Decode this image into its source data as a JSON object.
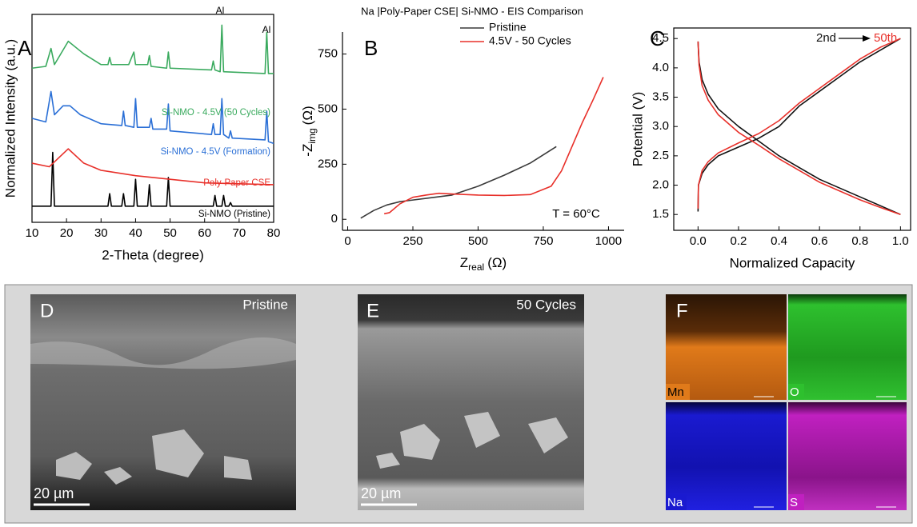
{
  "chart_data": [
    {
      "type": "line",
      "label": "A",
      "x_label": "2-Theta (degree)",
      "y_label": "Normalized Intensity (a.u.)",
      "xlim": [
        10,
        80
      ],
      "xticks": [
        10,
        20,
        30,
        40,
        50,
        60,
        70,
        80
      ],
      "ylim": [
        -8,
        108
      ],
      "annotations": [
        "Al",
        "Al"
      ],
      "series": [
        {
          "name": "Si-NMO (Pristine)",
          "color": "#000000",
          "x": [
            10,
            15.5,
            16,
            16.5,
            32,
            32.5,
            33,
            36,
            36.5,
            37,
            39.5,
            40,
            40.5,
            43.5,
            44,
            44.5,
            49,
            49.5,
            50,
            62.5,
            63,
            63.5,
            65,
            65.5,
            66,
            67,
            67.5,
            68,
            80
          ],
          "values": [
            1,
            1,
            31,
            1,
            1,
            8,
            1,
            1,
            8,
            1,
            1,
            16,
            1,
            1,
            13,
            1,
            1,
            17,
            1,
            1,
            7,
            1,
            1,
            7,
            1,
            1,
            3,
            1,
            1
          ]
        },
        {
          "name": "Poly-Paper CSE",
          "color": "#e8302a",
          "x": [
            10,
            15,
            20.5,
            25,
            30,
            40,
            50,
            60,
            80
          ],
          "values": [
            25,
            23,
            33,
            25,
            21,
            18,
            16,
            14,
            13
          ]
        },
        {
          "name": "Si-NMO - 4.5V (Formation)",
          "color": "#2a6fd6",
          "x": [
            10,
            14,
            15.5,
            16.5,
            19,
            21,
            24,
            30,
            36,
            36.5,
            37,
            39.5,
            40,
            40.5,
            44,
            44.5,
            45,
            49,
            49.5,
            50,
            62,
            62.5,
            63,
            64.5,
            65,
            65.5,
            67,
            67.5,
            68,
            77.5,
            78,
            78.5,
            80
          ],
          "values": [
            50,
            48,
            65,
            52,
            57,
            57,
            52,
            47,
            46,
            54,
            46,
            45,
            61,
            45,
            45,
            50,
            44,
            44,
            58,
            43,
            41,
            47,
            41,
            41,
            61,
            41,
            39,
            43,
            39,
            38,
            54,
            37,
            36
          ]
        },
        {
          "name": "Si-NMO - 4.5V (50 Cycles)",
          "color": "#3aaa5e",
          "x": [
            10,
            14,
            15.5,
            16.5,
            20.5,
            25,
            30,
            32,
            32.5,
            33,
            38,
            39.5,
            40,
            43.5,
            44,
            44.5,
            49,
            49.5,
            50,
            62,
            62.5,
            63,
            64.5,
            65,
            65.5,
            77.5,
            78,
            78.5,
            80
          ],
          "values": [
            78,
            79,
            89,
            80,
            93,
            86,
            80,
            80,
            84,
            80,
            80,
            87,
            80,
            80,
            85,
            79,
            78,
            87,
            78,
            77,
            82,
            77,
            76,
            102,
            76,
            75,
            98,
            75,
            75
          ]
        }
      ]
    },
    {
      "type": "line",
      "label": "B",
      "title": "Na |Poly-Paper CSE| Si-NMO - EIS Comparison",
      "x_label": {
        "main": "Z",
        "sub": "real",
        "unit": "(Ω)"
      },
      "y_label": {
        "main": "-Z",
        "sub": "img",
        "unit": "(Ω)"
      },
      "xlim": [
        -20,
        1060
      ],
      "xticks": [
        0,
        250,
        500,
        750,
        1000
      ],
      "ylim": [
        -50,
        850
      ],
      "yticks": [
        0,
        250,
        500,
        750
      ],
      "annotations": [
        "T = 60°C"
      ],
      "series": [
        {
          "name": "Pristine",
          "color": "#3a3a3a",
          "x": [
            50,
            100,
            150,
            200,
            300,
            400,
            500,
            600,
            700,
            800
          ],
          "values": [
            5,
            40,
            65,
            80,
            95,
            110,
            150,
            200,
            255,
            330
          ]
        },
        {
          "name": "4.5V - 50 Cycles",
          "color": "#e8302a",
          "x": [
            140,
            160,
            200,
            250,
            300,
            350,
            400,
            500,
            600,
            700,
            780,
            820,
            860,
            900,
            940,
            980
          ],
          "values": [
            25,
            30,
            70,
            100,
            110,
            118,
            115,
            110,
            108,
            112,
            150,
            220,
            330,
            440,
            540,
            645
          ]
        }
      ]
    },
    {
      "type": "line",
      "label": "C",
      "x_label": "Normalized Capacity",
      "y_label": "Potential (V)",
      "xlim": [
        -0.12,
        1.05
      ],
      "xticks": [
        {
          "value": 0,
          "label": "0.0"
        },
        0.2,
        0.4,
        0.6,
        0.8,
        {
          "value": 1,
          "label": "1.0"
        }
      ],
      "ylim": [
        1.23,
        4.68
      ],
      "yticks": [
        1.5,
        {
          "value": 2,
          "label": "2.0"
        },
        2.5,
        {
          "value": 3,
          "label": "3.0"
        },
        3.5,
        {
          "value": 4,
          "label": "4.0"
        },
        4.5
      ],
      "series": [
        {
          "name": "2nd",
          "color": "#111111",
          "x": [
            0,
            0.002,
            0.02,
            0.05,
            0.1,
            0.2,
            0.3,
            0.4,
            0.5,
            0.6,
            0.7,
            0.8,
            0.9,
            1.0,
            null,
            0,
            0.005,
            0.02,
            0.05,
            0.1,
            0.2,
            0.3,
            0.4,
            0.5,
            0.6,
            0.7,
            0.8,
            0.9,
            1.0
          ],
          "values": [
            1.55,
            2.0,
            2.2,
            2.35,
            2.5,
            2.65,
            2.8,
            3.0,
            3.35,
            3.6,
            3.85,
            4.1,
            4.3,
            4.5,
            null,
            4.45,
            4.1,
            3.8,
            3.55,
            3.3,
            3.0,
            2.75,
            2.5,
            2.3,
            2.1,
            1.95,
            1.8,
            1.65,
            1.5
          ]
        },
        {
          "name": "50th",
          "color": "#e8302a",
          "x": [
            0,
            0.002,
            0.02,
            0.05,
            0.1,
            0.2,
            0.3,
            0.4,
            0.5,
            0.6,
            0.7,
            0.8,
            0.9,
            1.0,
            null,
            0,
            0.005,
            0.02,
            0.05,
            0.1,
            0.2,
            0.3,
            0.4,
            0.5,
            0.6,
            0.7,
            0.8,
            0.9,
            1.0
          ],
          "values": [
            1.6,
            2.0,
            2.25,
            2.4,
            2.55,
            2.72,
            2.88,
            3.1,
            3.4,
            3.65,
            3.9,
            4.15,
            4.35,
            4.5,
            null,
            4.45,
            4.05,
            3.7,
            3.45,
            3.2,
            2.9,
            2.68,
            2.45,
            2.25,
            2.05,
            1.9,
            1.75,
            1.62,
            1.5
          ]
        }
      ]
    }
  ],
  "images": [
    {
      "label": "D",
      "caption": "Pristine",
      "scale_bar": "20 µm"
    },
    {
      "label": "E",
      "caption": "50 Cycles",
      "scale_bar": "20 µm"
    },
    {
      "label": "F",
      "maps": [
        "Mn",
        "O",
        "Na",
        "S"
      ]
    }
  ]
}
